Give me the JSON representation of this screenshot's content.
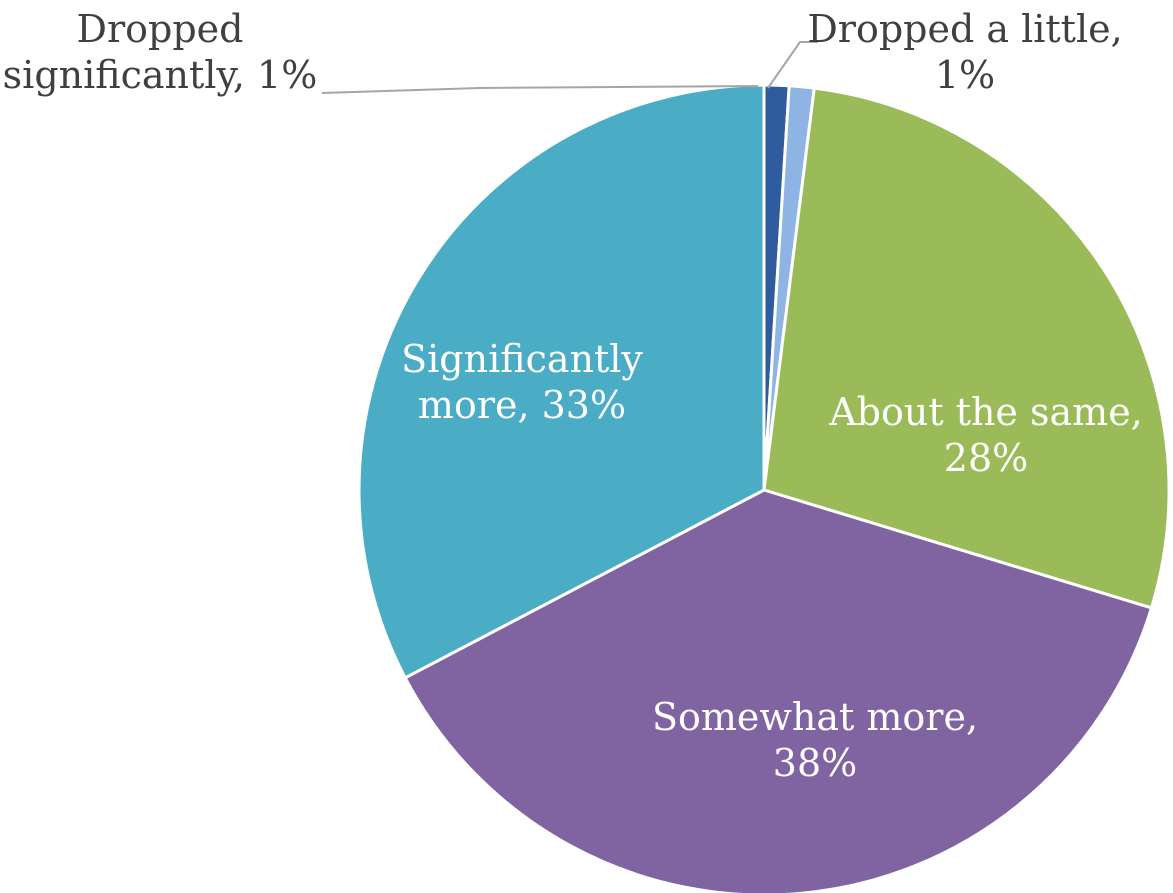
{
  "chart_data": {
    "type": "pie",
    "title": "",
    "slices": [
      {
        "label": "Dropped significantly",
        "value": 1,
        "value_label": "1%",
        "color": "#2E5C9E",
        "label_lines": [
          "Dropped",
          "significantly, 1%"
        ]
      },
      {
        "label": "Dropped a little",
        "value": 1,
        "value_label": "1%",
        "color": "#8EB4E3",
        "label_lines": [
          "Dropped a little,",
          "1%"
        ]
      },
      {
        "label": "About the same",
        "value": 28,
        "value_label": "28%",
        "color": "#9BBB59",
        "label_lines": [
          "About the same,",
          "28%"
        ]
      },
      {
        "label": "Somewhat more",
        "value": 38,
        "value_label": "38%",
        "color": "#8064A2",
        "label_lines": [
          "Somewhat more,",
          "38%"
        ]
      },
      {
        "label": "Significantly more",
        "value": 33,
        "value_label": "33%",
        "color": "#4BACC6",
        "label_lines": [
          "Significantly",
          "more, 33%"
        ]
      }
    ],
    "start_angle": "12 o'clock",
    "direction": "clockwise",
    "legend": "none",
    "label_color_inside": "#FFFFFF",
    "label_color_outside": "#404040",
    "leader_line_color": "#A6A6A6"
  }
}
